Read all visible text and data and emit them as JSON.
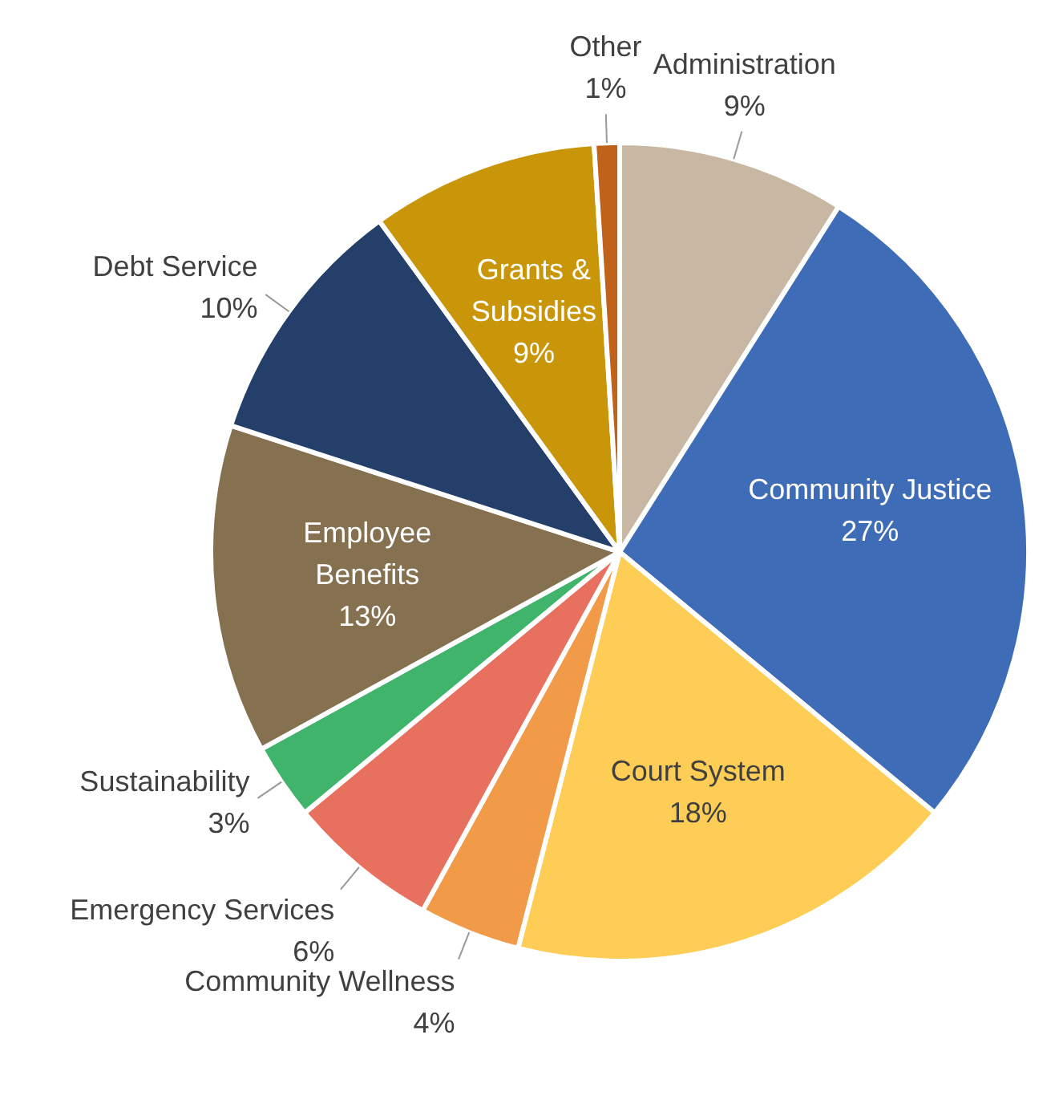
{
  "chart_data": {
    "type": "pie",
    "categories": [
      "Administration",
      "Community Justice",
      "Court System",
      "Community Wellness",
      "Emergency Services",
      "Sustainability",
      "Employee Benefits",
      "Debt Service",
      "Grants & Subsidies",
      "Other"
    ],
    "values": [
      9,
      27,
      18,
      4,
      6,
      3,
      13,
      10,
      9,
      1
    ],
    "colors": [
      "#c8b8a3",
      "#3f6cb6",
      "#fdcd55",
      "#f19a48",
      "#e8705f",
      "#40b46a",
      "#857050",
      "#243f6a",
      "#c9960a",
      "#c0621a"
    ],
    "value_labels": [
      "9%",
      "27%",
      "18%",
      "4%",
      "6%",
      "3%",
      "13%",
      "10%",
      "9%",
      "1%"
    ],
    "legend": false
  }
}
